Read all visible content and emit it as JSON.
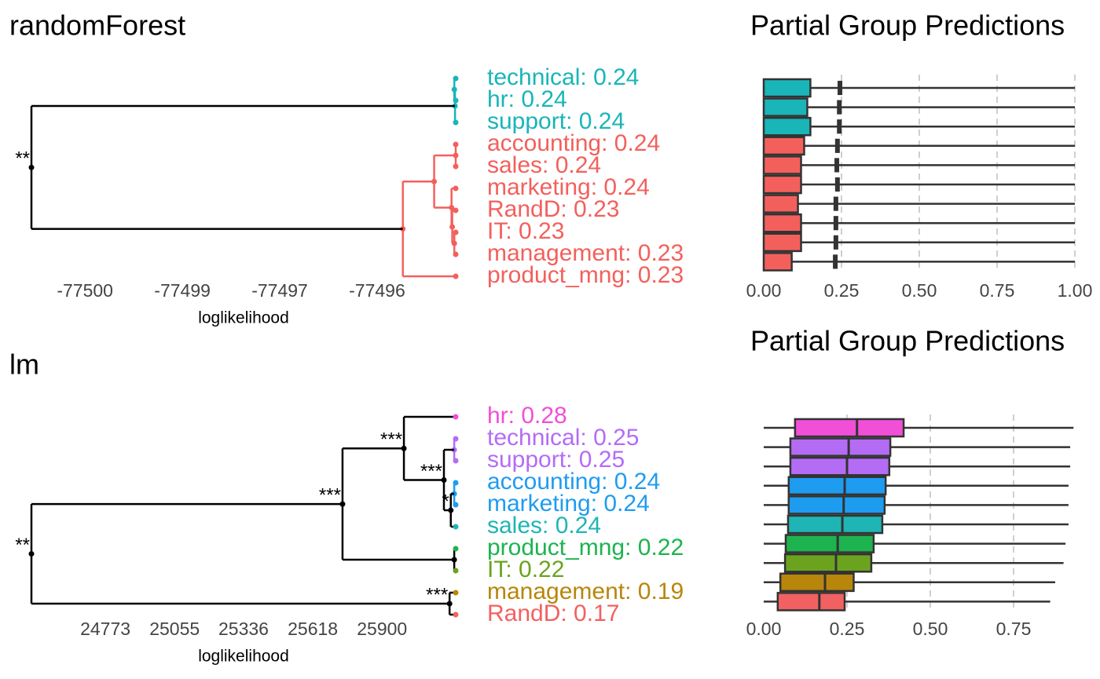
{
  "chart_data": [
    {
      "type": "dendrogram",
      "title": "randomForest",
      "xlabel": "loglikelihood",
      "xlim": [
        -77500.97,
        -77494.87
      ],
      "xticks": [
        {
          "value": -77500.2,
          "label": "-77500"
        },
        {
          "value": -77498.8,
          "label": "-77499"
        },
        {
          "value": -77497.4,
          "label": "-77497"
        },
        {
          "value": -77496.0,
          "label": "-77496"
        }
      ],
      "leaves": [
        {
          "label": "technical: 0.24",
          "color": "#19b5b8"
        },
        {
          "label": "hr: 0.24",
          "color": "#19b5b8"
        },
        {
          "label": "support: 0.24",
          "color": "#19b5b8"
        },
        {
          "label": "accounting: 0.24",
          "color": "#f3605c"
        },
        {
          "label": "sales: 0.24",
          "color": "#f3605c"
        },
        {
          "label": "marketing: 0.24",
          "color": "#f3605c"
        },
        {
          "label": "RandD: 0.23",
          "color": "#f3605c"
        },
        {
          "label": "IT: 0.23",
          "color": "#f3605c"
        },
        {
          "label": "management: 0.23",
          "color": "#f3605c"
        },
        {
          "label": "product_mng: 0.23",
          "color": "#f3605c"
        }
      ],
      "merges": [
        {
          "x": -77494.89,
          "children": [
            0,
            1
          ]
        },
        {
          "x": -77494.88,
          "children": [
            10,
            2
          ]
        },
        {
          "x": -77494.87,
          "children": [
            3,
            4
          ]
        },
        {
          "x": -77494.89,
          "children": [
            7,
            8
          ]
        },
        {
          "x": -77494.92,
          "children": [
            6,
            13
          ]
        },
        {
          "x": -77494.93,
          "children": [
            5,
            14
          ]
        },
        {
          "x": -77495.18,
          "children": [
            12,
            15
          ]
        },
        {
          "x": -77495.63,
          "children": [
            16,
            9
          ]
        },
        {
          "x": -77500.97,
          "children": [
            11,
            17
          ],
          "label": "**"
        }
      ]
    },
    {
      "type": "boxplot",
      "title": "Partial Group Predictions",
      "xlim": [
        0,
        1.0
      ],
      "xticks": [
        {
          "value": 0,
          "label": "0.00"
        },
        {
          "value": 0.25,
          "label": "0.25"
        },
        {
          "value": 0.5,
          "label": "0.50"
        },
        {
          "value": 0.75,
          "label": "0.75"
        },
        {
          "value": 1.0,
          "label": "1.00"
        }
      ],
      "boxes": [
        {
          "color": "#19b5b8",
          "min": 0,
          "q1": 0,
          "q3": 0.15,
          "max": 1.0,
          "mean": 0.245
        },
        {
          "color": "#19b5b8",
          "min": 0,
          "q1": 0,
          "q3": 0.14,
          "max": 1.0,
          "mean": 0.243
        },
        {
          "color": "#19b5b8",
          "min": 0,
          "q1": 0,
          "q3": 0.15,
          "max": 1.0,
          "mean": 0.243
        },
        {
          "color": "#f3605c",
          "min": 0,
          "q1": 0,
          "q3": 0.13,
          "max": 1.0,
          "mean": 0.237
        },
        {
          "color": "#f3605c",
          "min": 0,
          "q1": 0,
          "q3": 0.12,
          "max": 1.0,
          "mean": 0.235
        },
        {
          "color": "#f3605c",
          "min": 0,
          "q1": 0,
          "q3": 0.12,
          "max": 1.0,
          "mean": 0.237
        },
        {
          "color": "#f3605c",
          "min": 0,
          "q1": 0,
          "q3": 0.11,
          "max": 1.0,
          "mean": 0.232
        },
        {
          "color": "#f3605c",
          "min": 0,
          "q1": 0,
          "q3": 0.12,
          "max": 1.0,
          "mean": 0.232
        },
        {
          "color": "#f3605c",
          "min": 0,
          "q1": 0,
          "q3": 0.12,
          "max": 1.0,
          "mean": 0.232
        },
        {
          "color": "#f3605c",
          "min": 0,
          "q1": 0,
          "q3": 0.09,
          "max": 1.0,
          "mean": 0.23
        }
      ]
    },
    {
      "type": "dendrogram",
      "title": "lm",
      "xlabel": "loglikelihood",
      "xlim": [
        24472,
        26200
      ],
      "xticks": [
        24773,
        25055,
        25336,
        25618,
        25900
      ],
      "leaves": [
        {
          "label": "hr: 0.28",
          "color": "#f14fd8"
        },
        {
          "label": "technical: 0.25",
          "color": "#b46cf5"
        },
        {
          "label": "support: 0.25",
          "color": "#b46cf5"
        },
        {
          "label": "accounting: 0.24",
          "color": "#1e9cf0"
        },
        {
          "label": "marketing: 0.24",
          "color": "#1e9cf0"
        },
        {
          "label": "sales: 0.24",
          "color": "#1fb5b5"
        },
        {
          "label": "product_mng: 0.22",
          "color": "#1db34f"
        },
        {
          "label": "IT: 0.22",
          "color": "#6ba31e"
        },
        {
          "label": "management: 0.19",
          "color": "#b8860b"
        },
        {
          "label": "RandD: 0.17",
          "color": "#f26161"
        }
      ],
      "merges": [
        {
          "x": 26194,
          "children": [
            1,
            2
          ]
        },
        {
          "x": 26194,
          "children": [
            3,
            4
          ]
        },
        {
          "x": 26180,
          "children": [
            11,
            5
          ],
          "label": "*"
        },
        {
          "x": 26152,
          "children": [
            10,
            12
          ],
          "label": "***"
        },
        {
          "x": 25989,
          "children": [
            0,
            13
          ],
          "label": "***"
        },
        {
          "x": 26194,
          "children": [
            6,
            7
          ]
        },
        {
          "x": 25739,
          "children": [
            14,
            15
          ],
          "label": "***"
        },
        {
          "x": 26175,
          "children": [
            8,
            9
          ],
          "label": "***"
        },
        {
          "x": 24472,
          "children": [
            16,
            17
          ],
          "label": "**"
        }
      ]
    },
    {
      "type": "boxplot",
      "title": "Partial Group Predictions",
      "xlim": [
        0,
        0.934
      ],
      "xticks": [
        {
          "value": 0,
          "label": "0.00"
        },
        {
          "value": 0.25,
          "label": "0.25"
        },
        {
          "value": 0.5,
          "label": "0.50"
        },
        {
          "value": 0.75,
          "label": "0.75"
        }
      ],
      "boxes": [
        {
          "color": "#f14fd8",
          "min": 0,
          "q1": 0.094,
          "median": 0.28,
          "q3": 0.42,
          "max": 0.93
        },
        {
          "color": "#b46cf5",
          "min": 0,
          "q1": 0.08,
          "median": 0.255,
          "q3": 0.38,
          "max": 0.92
        },
        {
          "color": "#b46cf5",
          "min": 0,
          "q1": 0.08,
          "median": 0.25,
          "q3": 0.377,
          "max": 0.92
        },
        {
          "color": "#1e9cf0",
          "min": 0,
          "q1": 0.075,
          "median": 0.243,
          "q3": 0.366,
          "max": 0.915
        },
        {
          "color": "#1e9cf0",
          "min": 0,
          "q1": 0.075,
          "median": 0.24,
          "q3": 0.363,
          "max": 0.915
        },
        {
          "color": "#1fb5b5",
          "min": 0,
          "q1": 0.073,
          "median": 0.236,
          "q3": 0.356,
          "max": 0.915
        },
        {
          "color": "#1db34f",
          "min": 0,
          "q1": 0.066,
          "median": 0.222,
          "q3": 0.33,
          "max": 0.906
        },
        {
          "color": "#6ba31e",
          "min": 0,
          "q1": 0.064,
          "median": 0.217,
          "q3": 0.323,
          "max": 0.9
        },
        {
          "color": "#b8860b",
          "min": 0,
          "q1": 0.05,
          "median": 0.184,
          "q3": 0.27,
          "max": 0.875
        },
        {
          "color": "#f26161",
          "min": 0,
          "q1": 0.042,
          "median": 0.167,
          "q3": 0.243,
          "max": 0.86
        }
      ]
    }
  ]
}
